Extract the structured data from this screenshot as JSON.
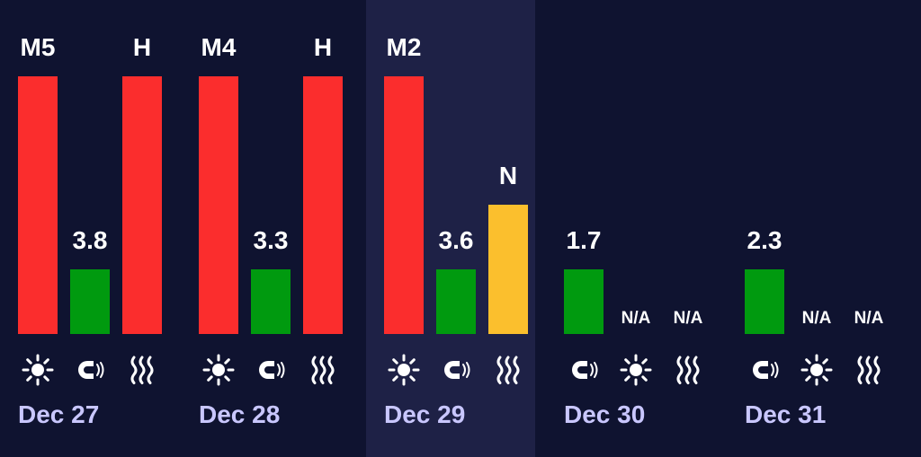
{
  "colors": {
    "background": "#0f1330",
    "highlight_background": "#1e2146",
    "red": "#fb2d2d",
    "green": "#009a0f",
    "yellow": "#fbbf2d",
    "value_text": "#ffffff",
    "date_text": "#c9c7ff"
  },
  "days": [
    {
      "date": "Dec 27",
      "highlighted": false,
      "items": [
        {
          "type": "solar",
          "icon": "sun-icon",
          "label": "M5",
          "level": 1.0,
          "color": "red"
        },
        {
          "type": "geomagnetic",
          "icon": "magnet-icon",
          "label": "3.8",
          "level": 0.25,
          "color": "green"
        },
        {
          "type": "radiation",
          "icon": "heat-waves-icon",
          "label": "H",
          "level": 1.0,
          "color": "red"
        }
      ]
    },
    {
      "date": "Dec 28",
      "highlighted": false,
      "items": [
        {
          "type": "solar",
          "icon": "sun-icon",
          "label": "M4",
          "level": 1.0,
          "color": "red"
        },
        {
          "type": "geomagnetic",
          "icon": "magnet-icon",
          "label": "3.3",
          "level": 0.25,
          "color": "green"
        },
        {
          "type": "radiation",
          "icon": "heat-waves-icon",
          "label": "H",
          "level": 1.0,
          "color": "red"
        }
      ]
    },
    {
      "date": "Dec 29",
      "highlighted": true,
      "items": [
        {
          "type": "solar",
          "icon": "sun-icon",
          "label": "M2",
          "level": 1.0,
          "color": "red"
        },
        {
          "type": "geomagnetic",
          "icon": "magnet-icon",
          "label": "3.6",
          "level": 0.25,
          "color": "green"
        },
        {
          "type": "radiation",
          "icon": "heat-waves-icon",
          "label": "N",
          "level": 0.5,
          "color": "yellow"
        }
      ]
    },
    {
      "date": "Dec 30",
      "highlighted": false,
      "items": [
        {
          "type": "geomagnetic",
          "icon": "magnet-icon",
          "label": "1.7",
          "level": 0.25,
          "color": "green"
        },
        {
          "type": "solar",
          "icon": "sun-icon",
          "label": "N/A",
          "level": 0,
          "color": "none"
        },
        {
          "type": "radiation",
          "icon": "heat-waves-icon",
          "label": "N/A",
          "level": 0,
          "color": "none"
        }
      ]
    },
    {
      "date": "Dec 31",
      "highlighted": false,
      "items": [
        {
          "type": "geomagnetic",
          "icon": "magnet-icon",
          "label": "2.3",
          "level": 0.25,
          "color": "green"
        },
        {
          "type": "solar",
          "icon": "sun-icon",
          "label": "N/A",
          "level": 0,
          "color": "none"
        },
        {
          "type": "radiation",
          "icon": "heat-waves-icon",
          "label": "N/A",
          "level": 0,
          "color": "none"
        }
      ]
    }
  ]
}
